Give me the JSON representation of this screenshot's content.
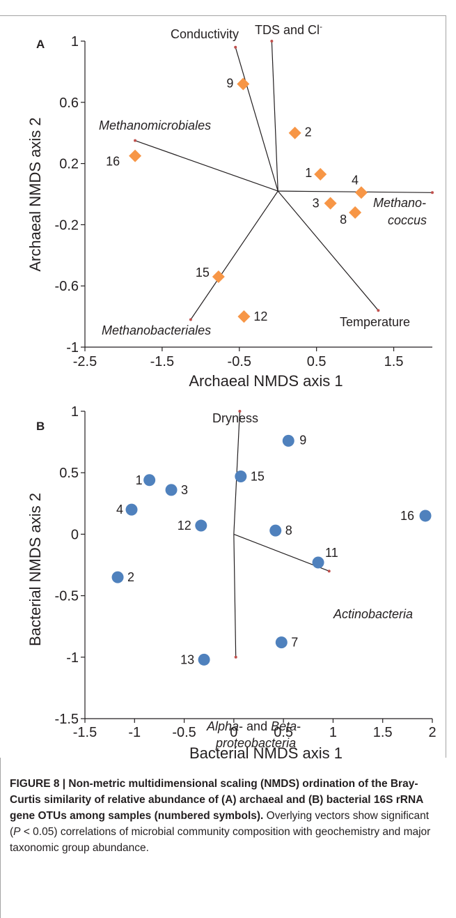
{
  "chart_data": [
    {
      "type": "scatter",
      "panel_label": "A",
      "xlabel": "Archaeal NMDS axis 1",
      "ylabel": "Archaeal NMDS axis 2",
      "xlim": [
        -2.5,
        2.0
      ],
      "ylim": [
        -1,
        1
      ],
      "xticks": [
        "-2.5",
        "-1.5",
        "-0.5",
        "0.5",
        "1.5"
      ],
      "xtick_values": [
        -2.5,
        -1.5,
        -0.5,
        0.5,
        1.5
      ],
      "yticks": [
        "-1",
        "-0.6",
        "-0.2",
        "0.2",
        "0.6",
        "1"
      ],
      "ytick_values": [
        -1,
        -0.6,
        -0.2,
        0.2,
        0.6,
        1
      ],
      "marker": "diamond",
      "marker_color": "#f79646",
      "points": [
        {
          "label": "9",
          "x": -0.45,
          "y": 0.72
        },
        {
          "label": "2",
          "x": 0.22,
          "y": 0.4
        },
        {
          "label": "16",
          "x": -1.85,
          "y": 0.25
        },
        {
          "label": "1",
          "x": 0.55,
          "y": 0.13
        },
        {
          "label": "4",
          "x": 1.08,
          "y": 0.01
        },
        {
          "label": "3",
          "x": 0.68,
          "y": -0.06
        },
        {
          "label": "8",
          "x": 1.0,
          "y": -0.12
        },
        {
          "label": "15",
          "x": -0.77,
          "y": -0.54
        },
        {
          "label": "12",
          "x": -0.44,
          "y": -0.8
        }
      ],
      "vectors": [
        {
          "label": "Conductivity",
          "italic": false,
          "x": -0.55,
          "y": 0.96
        },
        {
          "label": "TDS and Cl⁻",
          "italic": false,
          "x": -0.08,
          "y": 1.0
        },
        {
          "label": "Methanomicrobiales",
          "italic": true,
          "x": -1.85,
          "y": 0.35
        },
        {
          "label": "Methano-coccus",
          "italic": true,
          "x": 2.0,
          "y": 0.01
        },
        {
          "label": "Temperature",
          "italic": false,
          "x": 1.3,
          "y": -0.76
        },
        {
          "label": "Methanobacteriales",
          "italic": true,
          "x": -1.13,
          "y": -0.82
        }
      ],
      "vector_origin": {
        "x": 0.0,
        "y": 0.02
      },
      "vector_color": "#231f20",
      "vector_tip_color": "#c0504d"
    },
    {
      "type": "scatter",
      "panel_label": "B",
      "xlabel": "Bacterial NMDS axis 1",
      "ylabel": "Bacterial NMDS axis 2",
      "xlim": [
        -1.5,
        2.0
      ],
      "ylim": [
        -1.5,
        1.0
      ],
      "xticks": [
        "-1.5",
        "-1",
        "-0.5",
        "0",
        "0.5",
        "1",
        "1.5",
        "2"
      ],
      "xtick_values": [
        -1.5,
        -1,
        -0.5,
        0,
        0.5,
        1,
        1.5,
        2
      ],
      "yticks": [
        "-1.5",
        "-1",
        "-0.5",
        "0",
        "0.5",
        "1"
      ],
      "ytick_values": [
        -1.5,
        -1,
        -0.5,
        0,
        0.5,
        1
      ],
      "marker": "circle",
      "marker_color": "#4f81bd",
      "points": [
        {
          "label": "9",
          "x": 0.55,
          "y": 0.76
        },
        {
          "label": "15",
          "x": 0.07,
          "y": 0.47
        },
        {
          "label": "1",
          "x": -0.85,
          "y": 0.44
        },
        {
          "label": "3",
          "x": -0.63,
          "y": 0.36
        },
        {
          "label": "4",
          "x": -1.03,
          "y": 0.2
        },
        {
          "label": "12",
          "x": -0.33,
          "y": 0.07
        },
        {
          "label": "8",
          "x": 0.42,
          "y": 0.03
        },
        {
          "label": "16",
          "x": 1.93,
          "y": 0.15
        },
        {
          "label": "11",
          "x": 0.85,
          "y": -0.23
        },
        {
          "label": "2",
          "x": -1.17,
          "y": -0.35
        },
        {
          "label": "7",
          "x": 0.48,
          "y": -0.88
        },
        {
          "label": "13",
          "x": -0.3,
          "y": -1.02
        }
      ],
      "vectors": [
        {
          "label": "Dryness",
          "italic": false,
          "x": 0.06,
          "y": 1.0
        },
        {
          "label": "Actinobacteria",
          "italic": true,
          "x": 0.96,
          "y": -0.3
        },
        {
          "label": "Alpha- and Beta-proteobacteria",
          "italic": false,
          "x": 0.02,
          "y": -1.0
        }
      ],
      "vector_origin": {
        "x": 0.0,
        "y": 0.0
      },
      "vector_color": "#231f20",
      "vector_tip_color": "#c0504d"
    }
  ],
  "panel_a": {
    "label": "A",
    "xlabel": "Archaeal NMDS axis 1",
    "ylabel": "Archaeal NMDS axis 2",
    "vector_labels": {
      "conductivity": "Conductivity",
      "tds": "TDS and Cl",
      "tds_sup": "-",
      "methanomicrobiales": "Methanomicrobiales",
      "methanococcus_1": "Methano-",
      "methanococcus_2": "coccus",
      "temperature": "Temperature",
      "methanobacteriales": "Methanobacteriales"
    }
  },
  "panel_b": {
    "label": "B",
    "xlabel": "Bacterial NMDS axis 1",
    "ylabel": "Bacterial NMDS axis 2",
    "vector_labels": {
      "dryness": "Dryness",
      "actinobacteria": "Actinobacteria",
      "alpha": "Alpha",
      "and": "- and ",
      "beta": "Beta",
      "dash": "-",
      "proteobacteria": "proteobacteria"
    }
  },
  "caption": {
    "head": "FIGURE 8 | Non-metric multidimensional scaling (NMDS) ordination of the Bray-Curtis similarity of relative abundance of (A) archaeal and (B) bacterial 16S rRNA gene OTUs among samples (numbered symbols).",
    "rest_1": " Overlying vectors show significant (",
    "rest_p": "P",
    "rest_2": " < 0.05) correlations of microbial community composition with geochemistry and major taxonomic group abundance."
  }
}
